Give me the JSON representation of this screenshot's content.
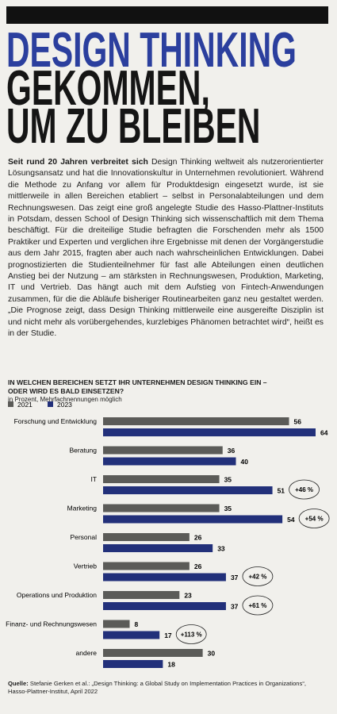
{
  "header": {
    "title_line1": "DESIGN THINKING",
    "title_line2": "GEKOMMEN,",
    "title_line3": "UM ZU BLEIBEN"
  },
  "article": {
    "lead": "Seit rund 20 Jahren verbreitet sich",
    "body": "Design Thinking weltweit als nutzerorientierter Lösungsansatz und hat die Innovationskultur in Unternehmen revolutioniert. Während die Methode zu Anfang vor allem für Produktdesign eingesetzt wurde, ist sie mittlerweile in allen Bereichen etabliert – selbst in Personalabteilungen und dem Rechnungswesen. Das zeigt eine groß angelegte Studie des Hasso-Plattner-Instituts in Potsdam, dessen School of Design Thinking sich wissenschaftlich mit dem Thema beschäftigt. Für die dreiteilige Studie befragten die Forschenden mehr als 1500 Praktiker und Experten und verglichen ihre Ergebnisse mit denen der Vorgängerstudie aus dem Jahr 2015, fragten aber auch nach wahrscheinlichen Entwicklungen. Dabei prognostizierten die Studienteilnehmer für fast alle Abteilungen einen deutlichen Anstieg bei der Nutzung – am stärksten in Rechnungswesen, Produktion, Marketing, IT und Vertrieb. Das hängt auch mit dem Aufstieg von Fintech-Anwendungen zusammen, für die die Abläufe bisheriger Routinearbeiten ganz neu gestaltet werden. „Die Prognose zeigt, dass Design Thinking mittlerweile eine ausgereifte Disziplin ist und nicht mehr als vorübergehendes, kurzlebiges Phänomen betrachtet wird“, heißt es in der Studie."
  },
  "chart_data": {
    "type": "bar",
    "orientation": "horizontal",
    "title": "IN WELCHEN BEREICHEN SETZT IHR UNTERNEHMEN DESIGN THINKING EIN – ODER WIRD ES BALD EINSETZEN?",
    "subtitle": "in Prozent, Mehrfachnennungen möglich",
    "categories": [
      "Forschung und Entwicklung",
      "Beratung",
      "IT",
      "Marketing",
      "Personal",
      "Vertrieb",
      "Operations und Produktion",
      "Finanz- und Rechnungswesen",
      "andere"
    ],
    "series": [
      {
        "name": "2021",
        "color": "#5b5b58",
        "values": [
          56,
          36,
          35,
          35,
          26,
          26,
          23,
          8,
          30
        ]
      },
      {
        "name": "2023",
        "color": "#22307a",
        "values": [
          64,
          40,
          51,
          54,
          33,
          37,
          37,
          17,
          18
        ]
      }
    ],
    "change_labels": [
      null,
      null,
      "+46 %",
      "+54 %",
      null,
      "+42 %",
      "+61 %",
      "+113 %",
      null
    ]
  },
  "source": {
    "label": "Quelle:",
    "text": "Stefanie Gerken et al.: „Design Thinking: a Global Study on Implementation Practices in Organizations“, Hasso-Plattner-Institut, April 2022"
  }
}
